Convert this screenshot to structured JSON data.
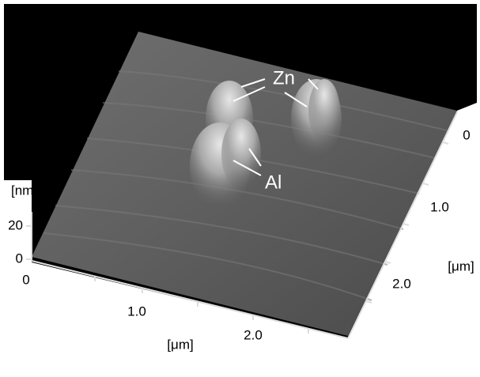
{
  "annotations": {
    "zn": "Zn",
    "al": "Al"
  },
  "z_axis": {
    "unit": "[nm]",
    "ticks": [
      "20",
      "0"
    ]
  },
  "x_axis": {
    "unit": "[μm]",
    "ticks": [
      "0",
      "1.0",
      "2.0"
    ]
  },
  "y_axis": {
    "unit": "[μm]",
    "ticks": [
      "0",
      "1.0",
      "2.0"
    ]
  }
}
